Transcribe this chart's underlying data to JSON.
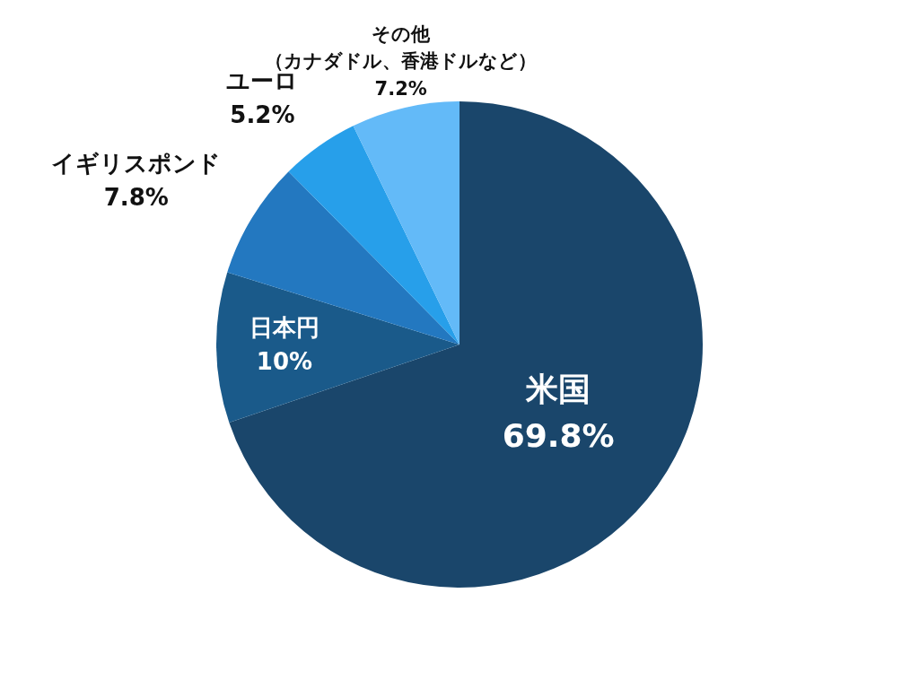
{
  "chart_data": {
    "type": "pie",
    "categories": [
      "米国",
      "日本円",
      "イギリスポンド",
      "ユーロ",
      "その他（カナダドル、香港ドルなど）"
    ],
    "values": [
      69.8,
      10,
      7.8,
      5.2,
      7.2
    ],
    "colors": [
      "#1a466b",
      "#1a5a8a",
      "#2378c0",
      "#279fea",
      "#63baf8"
    ],
    "value_labels": [
      "69.8%",
      "10%",
      "7.8%",
      "5.2%",
      "7.2%"
    ]
  }
}
